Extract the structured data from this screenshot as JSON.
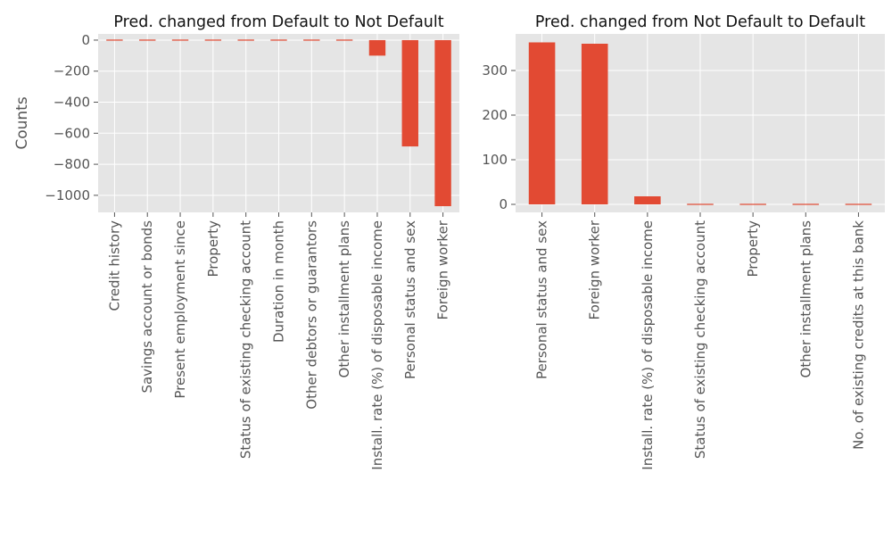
{
  "chart_data": [
    {
      "type": "bar",
      "title": "Pred. changed from Default to Not Default",
      "xlabel": "",
      "ylabel": "Counts",
      "ylim": [
        -1110,
        40
      ],
      "yticks": [
        0,
        -200,
        -400,
        -600,
        -800,
        -1000
      ],
      "ytick_labels": [
        "0",
        "−200",
        "−400",
        "−600",
        "−800",
        "−1000"
      ],
      "grid": true,
      "bar_color": "#E24A33",
      "categories": [
        "Credit history",
        "Savings account or bonds",
        "Present employment since",
        "Property",
        "Status of existing checking account",
        "Duration in month",
        "Other debtors or guarantors",
        "Other installment plans",
        "Install. rate (%) of disposable income",
        "Personal status and sex",
        "Foreign worker"
      ],
      "values": [
        3,
        2,
        2,
        2,
        0,
        0,
        0,
        -5,
        -100,
        -685,
        -1070
      ]
    },
    {
      "type": "bar",
      "title": "Pred. changed from Not Default to Default",
      "xlabel": "",
      "ylabel": "",
      "ylim": [
        -18,
        382
      ],
      "yticks": [
        0,
        100,
        200,
        300
      ],
      "ytick_labels": [
        "0",
        "100",
        "200",
        "300"
      ],
      "grid": true,
      "bar_color": "#E24A33",
      "categories": [
        "Personal status and sex",
        "Foreign worker",
        "Install. rate (%) of disposable income",
        "Status of existing checking account",
        "Property",
        "Other installment plans",
        "No. of existing credits at this bank"
      ],
      "values": [
        363,
        360,
        18,
        0,
        -2,
        -2,
        -2
      ]
    }
  ]
}
